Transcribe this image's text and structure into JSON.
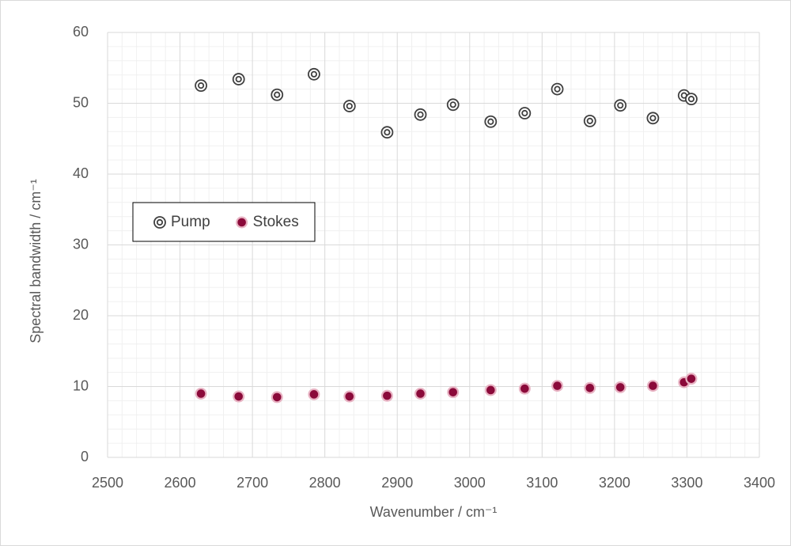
{
  "chart_data": {
    "type": "scatter",
    "x_label": "Wavenumber / cm⁻¹",
    "y_label": "Spectral bandwidth / cm⁻¹",
    "x": [
      2629,
      2681,
      2734,
      2785,
      2834,
      2886,
      2932,
      2977,
      3029,
      3076,
      3121,
      3166,
      3208,
      3253,
      3296,
      3306
    ],
    "series": [
      {
        "name": "Pump",
        "color": "#404040",
        "marker": "ring",
        "values": [
          52.5,
          53.4,
          51.2,
          54.1,
          49.6,
          45.9,
          48.4,
          49.8,
          47.4,
          48.6,
          52.0,
          47.5,
          49.7,
          47.9,
          51.1,
          50.6
        ]
      },
      {
        "name": "Stokes",
        "color": "#8b0a3a",
        "marker": "filled",
        "values": [
          9.0,
          8.6,
          8.5,
          8.9,
          8.6,
          8.7,
          9.0,
          9.2,
          9.5,
          9.7,
          10.1,
          9.8,
          9.9,
          10.1,
          10.6,
          11.1
        ]
      }
    ],
    "xlim": [
      2500,
      3400
    ],
    "xticks": [
      2500,
      2600,
      2700,
      2800,
      2900,
      3000,
      3100,
      3200,
      3300,
      3400
    ],
    "ylim": [
      0,
      60
    ],
    "yticks": [
      0,
      10,
      20,
      30,
      40,
      50,
      60
    ],
    "grid": true,
    "minor_grid": true,
    "legend_position": "center-left"
  }
}
